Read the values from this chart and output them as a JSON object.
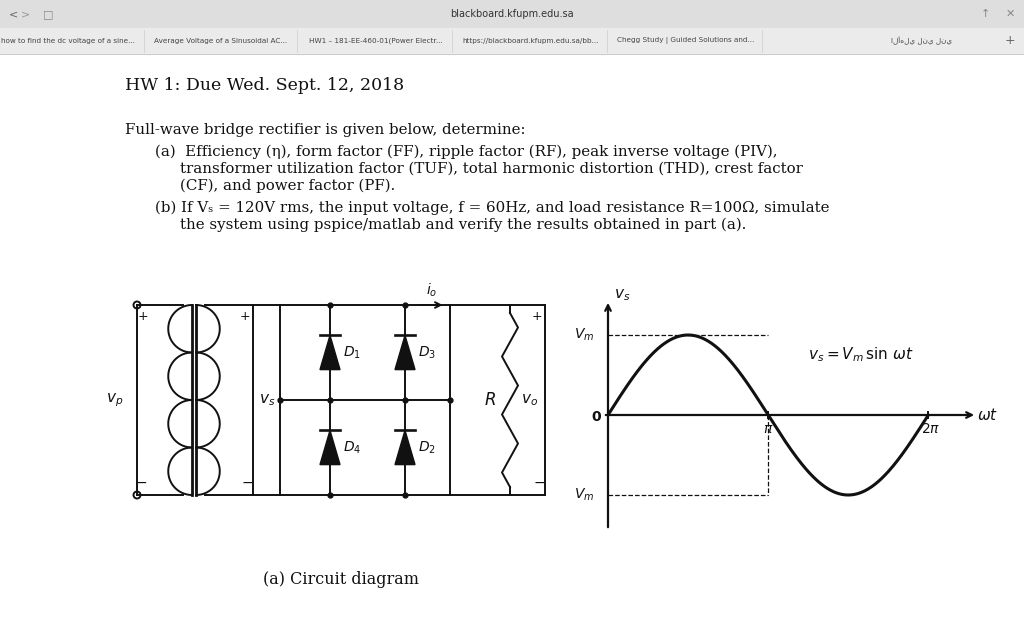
{
  "bg_color": "#ffffff",
  "text_color": "#1a1a1a",
  "title": "HW 1: Due Wed. Sept. 12, 2018",
  "caption": "(a) Circuit diagram",
  "figsize": [
    10.24,
    6.4
  ],
  "dpi": 100,
  "browser_tab_color": "#e0e0e0",
  "browser_bar_color": "#f2f2f2",
  "browser_title": "blackboard.kfupm.edu.sa",
  "tab_labels": [
    "how to find the dc voltage of a sine...",
    "Average Voltage of a Sinusoidal AC...",
    "HW1 – 181-EE-460-01(Power Electr...",
    "https://blackboard.kfupm.edu.sa/bb...",
    "Chegg Study | Guided Solutions and...",
    "الأهلي لني لني"
  ],
  "tab_x": [
    68,
    221,
    376,
    531,
    686,
    922
  ]
}
